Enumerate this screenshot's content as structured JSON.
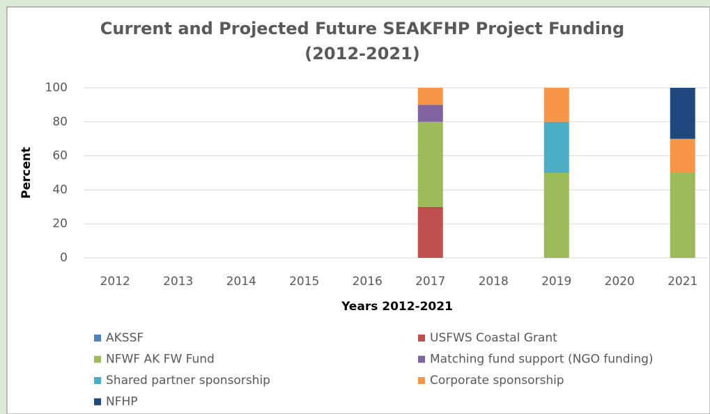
{
  "chart_data": {
    "type": "stacked_bar",
    "title": [
      "Current and Projected Future SEAKFHP Project Funding",
      "(2012-2021)"
    ],
    "x_label": "Years 2012-2021",
    "y_label": "Percent",
    "categories": [
      "2012",
      "2013",
      "2014",
      "2015",
      "2016",
      "2017",
      "2018",
      "2019",
      "2020",
      "2021"
    ],
    "series": [
      {
        "name": "AKSSF",
        "color": "#4f81bd",
        "values": [
          0,
          0,
          0,
          0,
          0,
          0,
          0,
          0,
          0,
          0
        ]
      },
      {
        "name": "USFWS Coastal Grant",
        "color": "#c0504d",
        "values": [
          0,
          0,
          0,
          0,
          0,
          30,
          0,
          0,
          0,
          0
        ]
      },
      {
        "name": "NFWF AK FW Fund",
        "color": "#9bbb59",
        "values": [
          0,
          0,
          0,
          0,
          0,
          50,
          0,
          50,
          0,
          50
        ]
      },
      {
        "name": "Matching fund support (NGO funding)",
        "color": "#8064a2",
        "values": [
          0,
          0,
          0,
          0,
          0,
          10,
          0,
          0,
          0,
          0
        ]
      },
      {
        "name": "Shared partner sponsorship",
        "color": "#4bacc6",
        "values": [
          0,
          0,
          0,
          0,
          0,
          0,
          0,
          30,
          0,
          0
        ]
      },
      {
        "name": "Corporate sponsorship",
        "color": "#f79646",
        "values": [
          0,
          0,
          0,
          0,
          0,
          10,
          0,
          20,
          0,
          20
        ]
      },
      {
        "name": "NFHP",
        "color": "#1f497d",
        "values": [
          0,
          0,
          0,
          0,
          0,
          0,
          0,
          0,
          0,
          30
        ]
      }
    ],
    "ylim": [
      0,
      100
    ],
    "yticks": [
      0,
      20,
      40,
      60,
      80,
      100
    ],
    "grid": true,
    "legend": "bottom"
  }
}
